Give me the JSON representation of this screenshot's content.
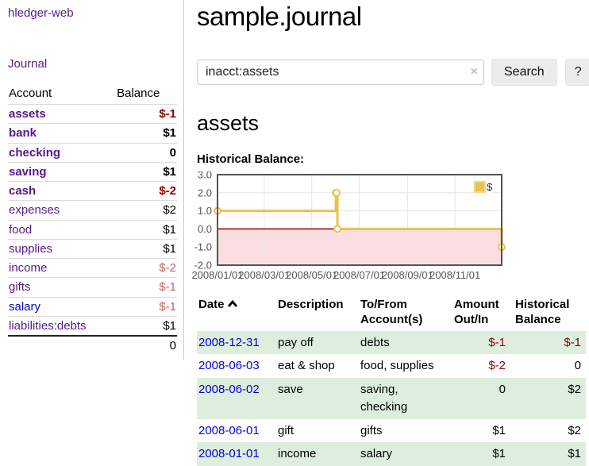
{
  "app": {
    "brand": "hledger-web",
    "nav_journal": "Journal"
  },
  "colors": {
    "link_purple": "#551a8b",
    "link_blue": "#0000dd",
    "negative": "#8b0000",
    "negative_faint": "#c36565",
    "row_green": "#ddeedd",
    "chart_line": "#e8c34e",
    "chart_negative_fill": "#fbdee1",
    "chart_zero_line": "#8b0000",
    "axis_text": "#545454"
  },
  "sidebar": {
    "table": {
      "headers": [
        "Account",
        "Balance"
      ],
      "rows": [
        {
          "account": "assets",
          "balance": "$-1",
          "level": 1,
          "bold": true,
          "balance_color": "negative"
        },
        {
          "account": "bank",
          "balance": "$1",
          "level": 2,
          "bold": true,
          "balance_color": "normal"
        },
        {
          "account": "checking",
          "balance": "0",
          "level": 3,
          "bold": true,
          "balance_color": "normal"
        },
        {
          "account": "saving",
          "balance": "$1",
          "level": 3,
          "bold": true,
          "balance_color": "normal"
        },
        {
          "account": "cash",
          "balance": "$-2",
          "level": 2,
          "bold": true,
          "balance_color": "negative"
        },
        {
          "account": "expenses",
          "balance": "$2",
          "level": 1,
          "bold": false,
          "balance_color": "normal"
        },
        {
          "account": "food",
          "balance": "$1",
          "level": 2,
          "bold": false,
          "balance_color": "normal"
        },
        {
          "account": "supplies",
          "balance": "$1",
          "level": 2,
          "bold": false,
          "balance_color": "normal"
        },
        {
          "account": "income",
          "balance": "$-2",
          "level": 1,
          "bold": false,
          "balance_color": "negative-faint"
        },
        {
          "account": "gifts",
          "balance": "$-1",
          "level": 2,
          "bold": false,
          "balance_color": "negative-faint"
        },
        {
          "account": "salary",
          "balance": "$-1",
          "level": 2,
          "bold": false,
          "balance_color": "negative-faint",
          "link_color": "blue"
        },
        {
          "account": "liabilities:debts",
          "balance": "$1",
          "level": 1,
          "bold": false,
          "balance_color": "normal"
        }
      ],
      "total": "0"
    }
  },
  "header": {
    "title": "sample.journal"
  },
  "search": {
    "value": "inacct:assets",
    "clear_icon": "×",
    "button_label": "Search",
    "help_label": "?"
  },
  "main": {
    "account_title": "assets",
    "chart_label": "Historical Balance:"
  },
  "chart_data": {
    "type": "line",
    "step": true,
    "title": "Historical Balance:",
    "series": [
      {
        "name": "$",
        "color": "#e8c34e",
        "x": [
          "2008-01-01",
          "2008-06-01",
          "2008-06-02",
          "2008-06-03",
          "2008-12-31"
        ],
        "values": [
          1,
          2,
          2,
          0,
          -1
        ]
      }
    ],
    "x_range": [
      "2008-01-01",
      "2008-12-31"
    ],
    "x_tick_labels": [
      "2008/01/01",
      "2008/03/01",
      "2008/05/01",
      "2008/07/01",
      "2008/09/01",
      "2008/11/01"
    ],
    "y_ticks": [
      3.0,
      2.0,
      1.0,
      0.0,
      -1.0,
      -2.0
    ],
    "ylim": [
      -2.0,
      3.0
    ],
    "grid": true,
    "legend_position": "top-right",
    "negative_region_shaded": true
  },
  "register": {
    "headers": [
      "Date",
      "Description",
      "To/From Account(s)",
      "Amount Out/In",
      "Historical Balance"
    ],
    "sort": {
      "column": "Date",
      "direction": "ascending"
    },
    "rows": [
      {
        "date": "2008-12-31",
        "description": "pay off",
        "accounts": "debts",
        "amount": "$-1",
        "amount_color": "negative",
        "balance": "$-1",
        "balance_color": "negative"
      },
      {
        "date": "2008-06-03",
        "description": "eat & shop",
        "accounts": "food, supplies",
        "amount": "$-2",
        "amount_color": "negative",
        "balance": "0",
        "balance_color": "normal"
      },
      {
        "date": "2008-06-02",
        "description": "save",
        "accounts": "saving, checking",
        "amount": "0",
        "amount_color": "normal",
        "balance": "$2",
        "balance_color": "normal"
      },
      {
        "date": "2008-06-01",
        "description": "gift",
        "accounts": "gifts",
        "amount": "$1",
        "amount_color": "normal",
        "balance": "$2",
        "balance_color": "normal"
      },
      {
        "date": "2008-01-01",
        "description": "income",
        "accounts": "salary",
        "amount": "$1",
        "amount_color": "normal",
        "balance": "$1",
        "balance_color": "normal"
      }
    ]
  }
}
